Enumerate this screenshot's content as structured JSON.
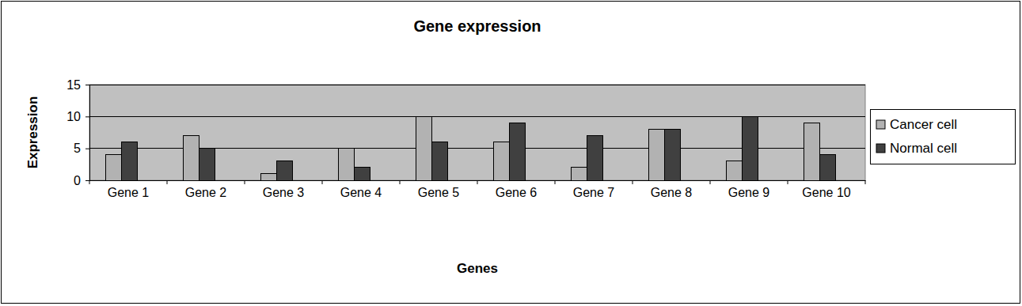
{
  "chart_data": {
    "type": "bar",
    "title": "Gene expression",
    "x_label": "Genes",
    "y_label": "Expression",
    "categories": [
      "Gene 1",
      "Gene 2",
      "Gene 3",
      "Gene 4",
      "Gene 5",
      "Gene 6",
      "Gene 7",
      "Gene 8",
      "Gene 9",
      "Gene 10"
    ],
    "series": [
      {
        "name": "Cancer cell",
        "color": "#b2b2b2",
        "values": [
          4,
          7,
          1,
          5,
          10,
          6,
          2,
          8,
          3,
          9
        ]
      },
      {
        "name": "Normal cell",
        "color": "#404040",
        "values": [
          6,
          5,
          3,
          2,
          6,
          9,
          7,
          8,
          10,
          4
        ]
      }
    ],
    "ylim": [
      0,
      15
    ],
    "yticks": [
      0,
      5,
      10,
      15
    ],
    "grid": true,
    "legend": "right"
  }
}
